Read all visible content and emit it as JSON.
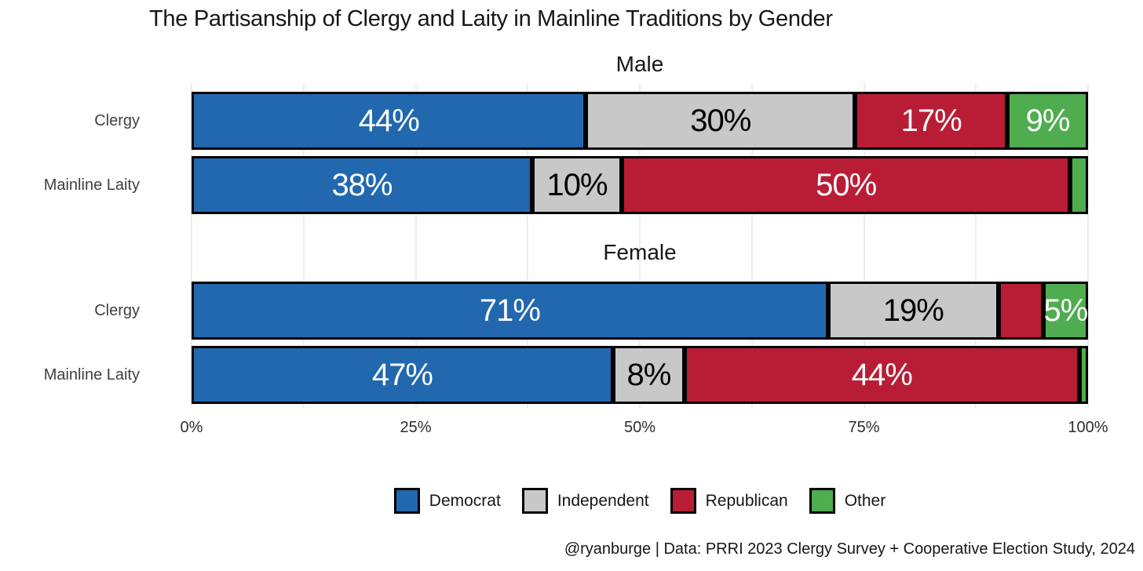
{
  "title": "The Partisanship of Clergy and Laity in Mainline Traditions by Gender",
  "caption": "@ryanburge | Data: PRRI 2023 Clergy Survey + Cooperative Election Study, 2024",
  "colors": {
    "background": "#ffffff",
    "segment_border": "#000000",
    "gridline": "#ececec",
    "row_label_text": "#3f3f3f",
    "axis_text": "#2e2e2e",
    "title_text": "#161616"
  },
  "palette": {
    "Democrat": "#2268AE",
    "Independent": "#C8C8C8",
    "Republican": "#B91D36",
    "Other": "#4FAD4F"
  },
  "segment_label_colors": {
    "Democrat": "#FFFFFF",
    "Independent": "#000000",
    "Republican": "#FFFFFF",
    "Other": "#FFFFFF"
  },
  "x_axis": {
    "ticks": [
      "0%",
      "25%",
      "50%",
      "75%",
      "100%"
    ],
    "values": [
      0,
      25,
      50,
      75,
      100
    ],
    "gridline_step": 12.5
  },
  "legend_labels": [
    "Democrat",
    "Independent",
    "Republican",
    "Other"
  ],
  "chart_data": {
    "type": "bar",
    "orientation": "horizontal",
    "stacked": true,
    "xlim": [
      0,
      100
    ],
    "series_names": [
      "Democrat",
      "Independent",
      "Republican",
      "Other"
    ],
    "panels": [
      {
        "title": "Male",
        "rows": [
          {
            "category": "Clergy",
            "values": [
              44,
              30,
              17,
              9
            ],
            "labels": [
              "44%",
              "30%",
              "17%",
              "9%"
            ]
          },
          {
            "category": "Mainline Laity",
            "values": [
              38,
              10,
              50,
              2
            ],
            "labels": [
              "38%",
              "10%",
              "50%",
              ""
            ]
          }
        ]
      },
      {
        "title": "Female",
        "rows": [
          {
            "category": "Clergy",
            "values": [
              71,
              19,
              5,
              5
            ],
            "labels": [
              "71%",
              "19%",
              "",
              "5%"
            ]
          },
          {
            "category": "Mainline Laity",
            "values": [
              47,
              8,
              44,
              1
            ],
            "labels": [
              "47%",
              "8%",
              "44%",
              ""
            ]
          }
        ]
      }
    ]
  }
}
